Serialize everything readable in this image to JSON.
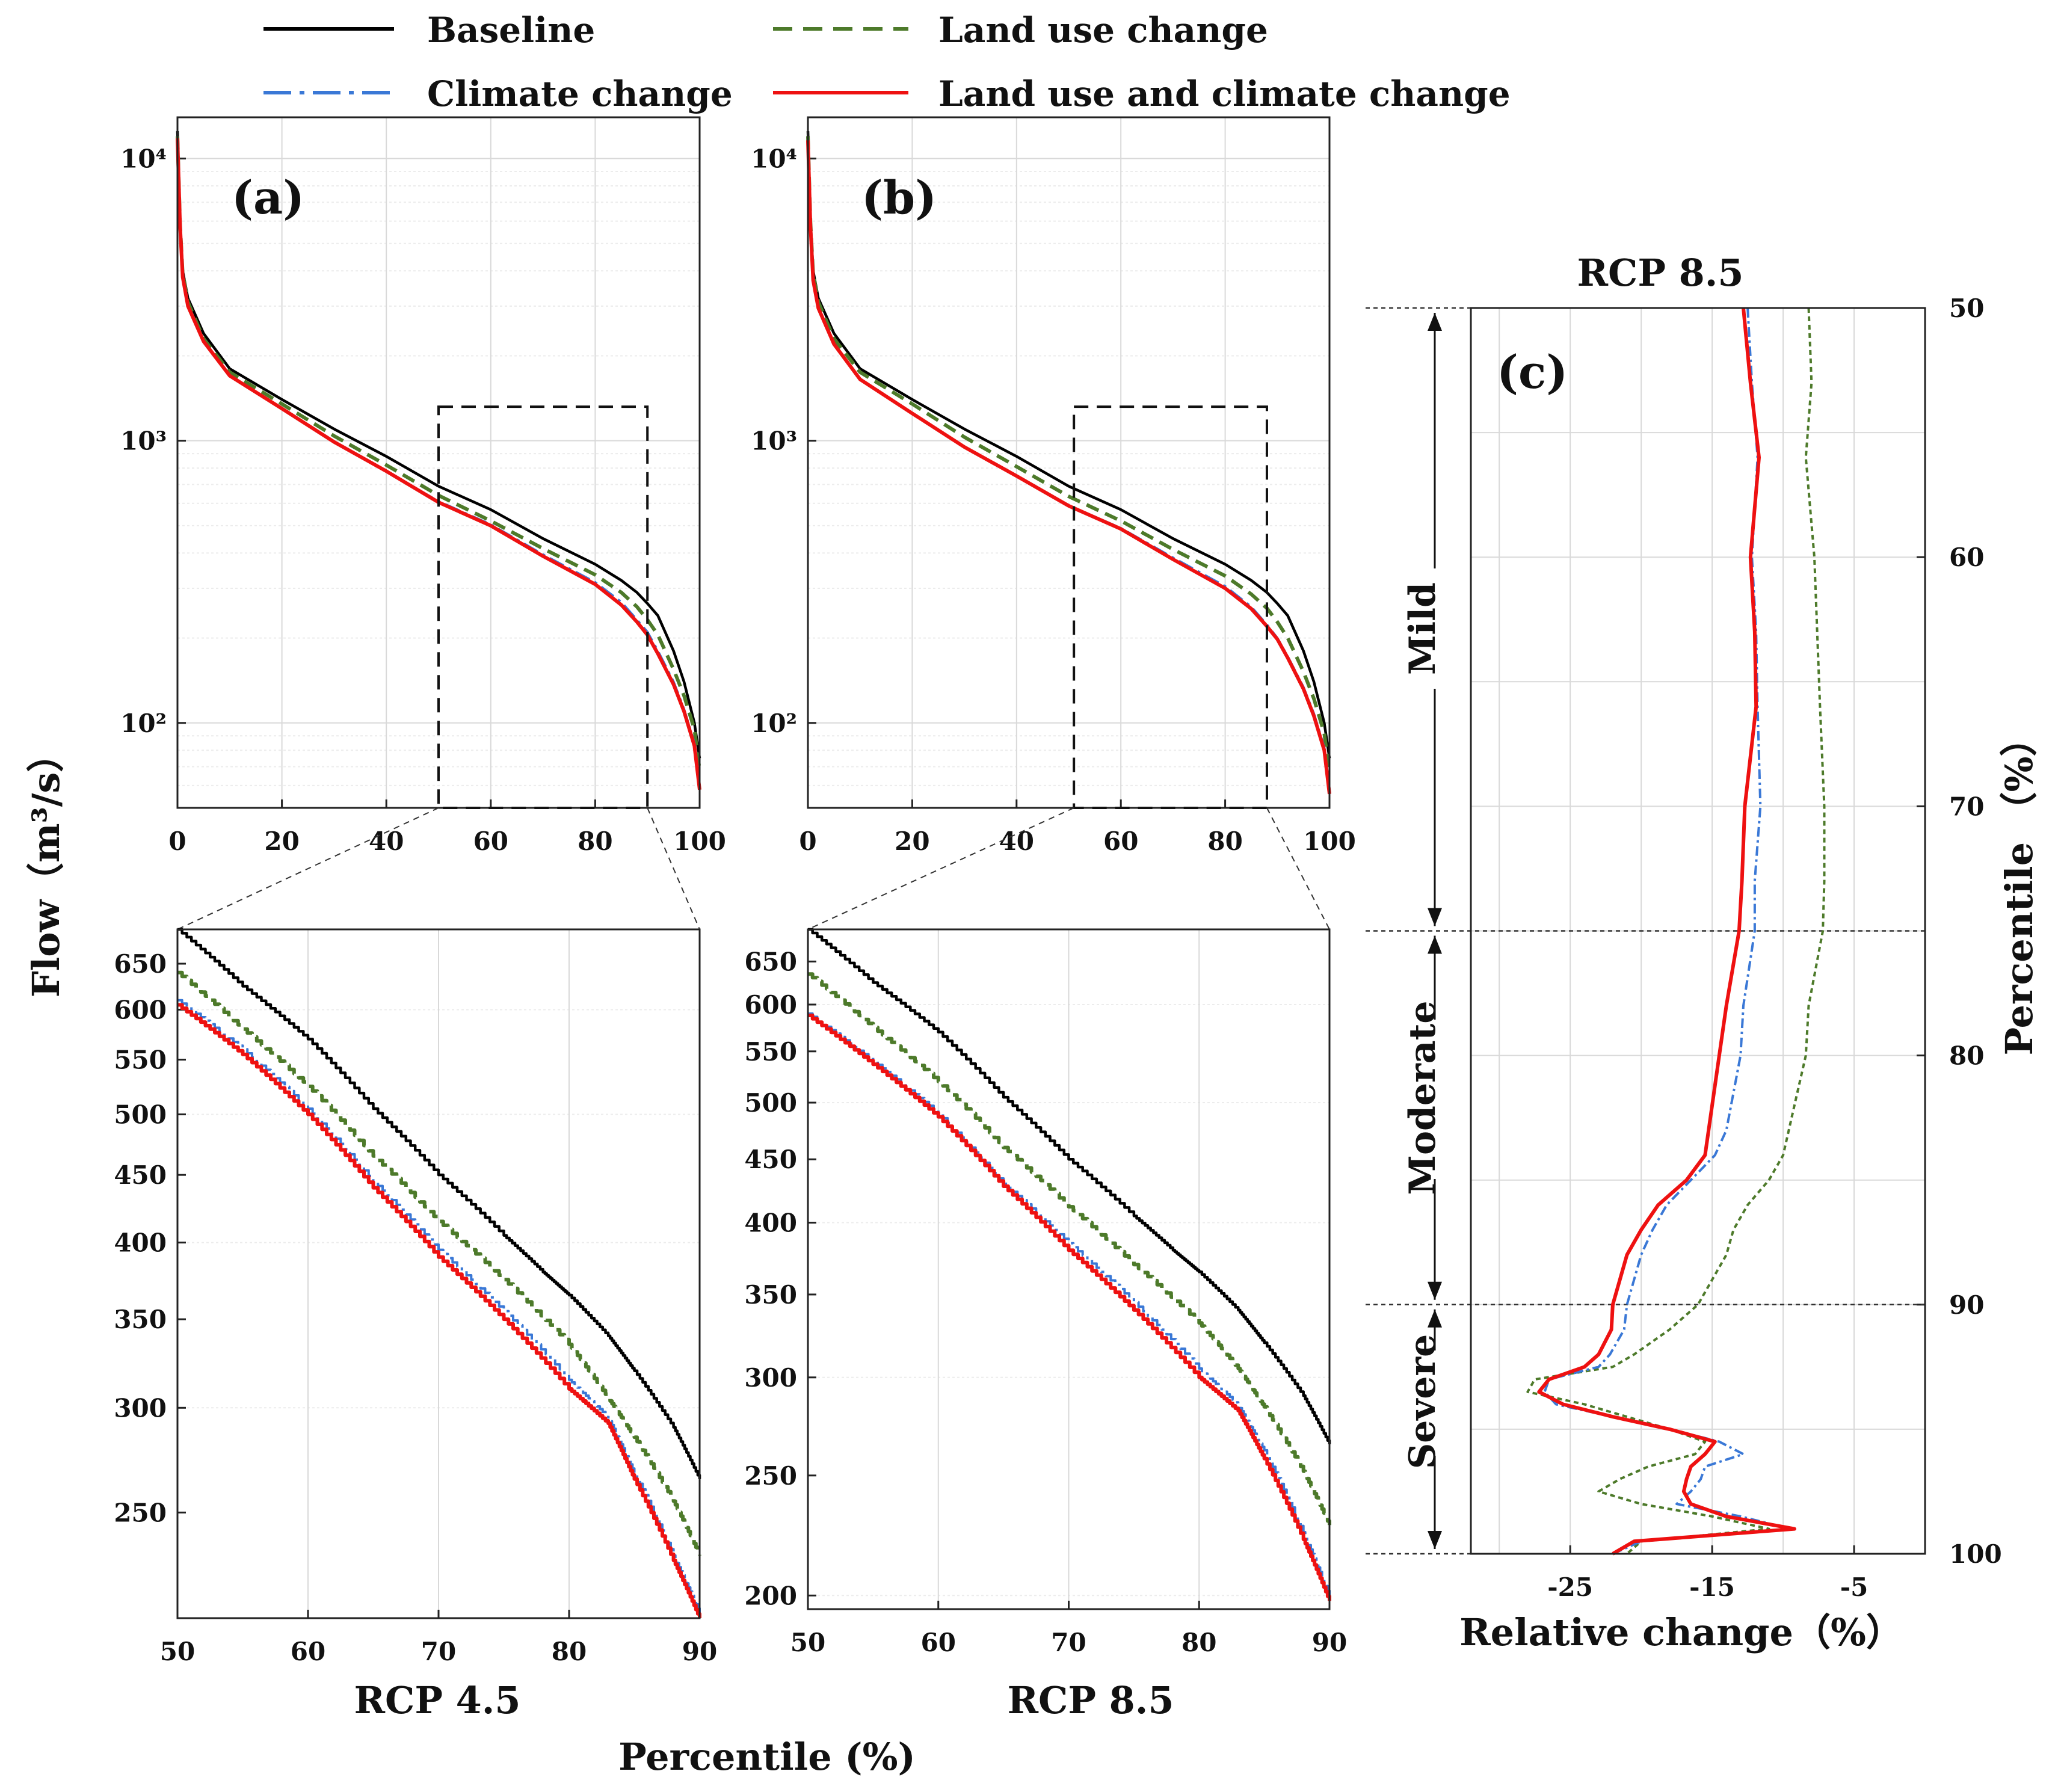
{
  "legend": {
    "items": [
      {
        "name": "Baseline",
        "color": "#000000",
        "dash": "solid"
      },
      {
        "name": "Land use change",
        "color": "#4d7a2a",
        "dash": "dashed"
      },
      {
        "name": "Climate change",
        "color": "#3a78d6",
        "dash": "dashdot"
      },
      {
        "name": "Land use and climate change",
        "color": "#ee1111",
        "dash": "solid"
      }
    ]
  },
  "labels": {
    "panel_a": "(a)",
    "panel_b": "(b)",
    "panel_c": "(c)",
    "flow_axis": "Flow（m³/s）",
    "rcp45": "RCP 4.5",
    "rcp85": "RCP 8.5",
    "percentile_axis": "Percentile (%)",
    "c_title": "RCP 8.5",
    "c_xlabel": "Relative change（%）",
    "c_ylabel": "Percentile （%）",
    "mild": "Mild",
    "moderate": "Moderate",
    "severe": "Severe"
  },
  "chart_data": [
    {
      "id": "a",
      "type": "line",
      "yscale": "log",
      "xlim": [
        0,
        100
      ],
      "ylim": [
        50,
        14000
      ],
      "xticks": [
        0,
        20,
        40,
        60,
        80,
        100
      ],
      "yticks": [
        {
          "v": 100,
          "label": "10²"
        },
        {
          "v": 1000,
          "label": "10³"
        },
        {
          "v": 10000,
          "label": "10⁴"
        }
      ],
      "zoom_box": {
        "x": [
          50,
          90
        ],
        "y": [
          50,
          1320
        ]
      },
      "series": [
        {
          "name": "Baseline",
          "x": [
            0,
            0.5,
            1,
            2,
            5,
            10,
            20,
            30,
            40,
            50,
            60,
            70,
            80,
            85,
            88,
            90,
            92,
            95,
            97,
            99,
            100
          ],
          "y": [
            12500,
            6000,
            4000,
            3200,
            2400,
            1800,
            1400,
            1100,
            880,
            690,
            570,
            450,
            365,
            320,
            290,
            265,
            240,
            180,
            140,
            100,
            75
          ]
        },
        {
          "name": "Land use change",
          "x": [
            0,
            0.5,
            1,
            2,
            5,
            10,
            20,
            30,
            40,
            50,
            60,
            70,
            80,
            85,
            88,
            90,
            92,
            95,
            97,
            99,
            100
          ],
          "y": [
            12000,
            5900,
            3900,
            3100,
            2300,
            1750,
            1350,
            1040,
            820,
            640,
            520,
            415,
            335,
            290,
            258,
            232,
            205,
            155,
            125,
            95,
            68
          ]
        },
        {
          "name": "Climate change",
          "x": [
            0,
            0.5,
            1,
            2,
            5,
            10,
            20,
            30,
            40,
            50,
            60,
            70,
            80,
            85,
            88,
            90,
            92,
            95,
            97,
            99,
            100
          ],
          "y": [
            11800,
            5800,
            3800,
            3000,
            2250,
            1700,
            1300,
            990,
            780,
            610,
            505,
            395,
            315,
            268,
            232,
            210,
            180,
            140,
            112,
            85,
            60
          ]
        },
        {
          "name": "Land use and climate change",
          "x": [
            0,
            0.5,
            1,
            2,
            5,
            10,
            20,
            30,
            40,
            50,
            60,
            70,
            80,
            85,
            88,
            90,
            92,
            95,
            97,
            99,
            100
          ],
          "y": [
            11800,
            5800,
            3800,
            3000,
            2250,
            1700,
            1300,
            990,
            780,
            605,
            500,
            390,
            310,
            262,
            228,
            205,
            176,
            137,
            110,
            83,
            58
          ]
        }
      ]
    },
    {
      "id": "b",
      "type": "line",
      "yscale": "log",
      "xlim": [
        0,
        100
      ],
      "ylim": [
        50,
        14000
      ],
      "xticks": [
        0,
        20,
        40,
        60,
        80,
        100
      ],
      "yticks": [
        {
          "v": 100,
          "label": "10²"
        },
        {
          "v": 1000,
          "label": "10³"
        },
        {
          "v": 10000,
          "label": "10⁴"
        }
      ],
      "zoom_box": {
        "x": [
          51,
          88
        ],
        "y": [
          50,
          1320
        ]
      },
      "series": [
        {
          "name": "Baseline",
          "x": [
            0,
            0.5,
            1,
            2,
            5,
            10,
            20,
            30,
            40,
            50,
            60,
            70,
            80,
            85,
            88,
            90,
            92,
            95,
            97,
            99,
            100
          ],
          "y": [
            12500,
            6000,
            4000,
            3200,
            2400,
            1800,
            1400,
            1100,
            880,
            690,
            570,
            450,
            365,
            320,
            290,
            265,
            240,
            180,
            140,
            100,
            75
          ]
        },
        {
          "name": "Land use change",
          "x": [
            0,
            0.5,
            1,
            2,
            5,
            10,
            20,
            30,
            40,
            50,
            60,
            70,
            80,
            85,
            88,
            90,
            92,
            95,
            97,
            99,
            100
          ],
          "y": [
            12000,
            5900,
            3900,
            3100,
            2300,
            1750,
            1350,
            1030,
            810,
            635,
            520,
            412,
            332,
            286,
            255,
            228,
            200,
            152,
            122,
            92,
            66
          ]
        },
        {
          "name": "Climate change",
          "x": [
            0,
            0.5,
            1,
            2,
            5,
            10,
            20,
            30,
            40,
            50,
            60,
            70,
            80,
            85,
            88,
            90,
            92,
            95,
            97,
            99,
            100
          ],
          "y": [
            11600,
            5700,
            3700,
            2950,
            2200,
            1650,
            1250,
            950,
            750,
            590,
            490,
            385,
            305,
            258,
            223,
            200,
            172,
            134,
            108,
            82,
            58
          ]
        },
        {
          "name": "Land use and climate change",
          "x": [
            0,
            0.5,
            1,
            2,
            5,
            10,
            20,
            30,
            40,
            50,
            60,
            70,
            80,
            85,
            88,
            90,
            92,
            95,
            97,
            99,
            100
          ],
          "y": [
            11600,
            5700,
            3700,
            2950,
            2200,
            1650,
            1250,
            950,
            750,
            588,
            487,
            380,
            300,
            254,
            220,
            198,
            170,
            132,
            106,
            80,
            56
          ]
        }
      ]
    },
    {
      "id": "a-zoom",
      "type": "line",
      "yscale": "log",
      "xlim": [
        50,
        90
      ],
      "ylim": [
        208,
        690
      ],
      "xticks": [
        50,
        60,
        70,
        80,
        90
      ],
      "yticks": [
        {
          "v": 250,
          "label": "250"
        },
        {
          "v": 300,
          "label": "300"
        },
        {
          "v": 350,
          "label": "350"
        },
        {
          "v": 400,
          "label": "400"
        },
        {
          "v": 450,
          "label": "450"
        },
        {
          "v": 500,
          "label": "500"
        },
        {
          "v": 550,
          "label": "550"
        },
        {
          "v": 600,
          "label": "600"
        },
        {
          "v": 650,
          "label": "650"
        }
      ],
      "xlabel": "RCP 4.5",
      "series": [
        {
          "name": "Baseline",
          "x": [
            50,
            55,
            60,
            65,
            70,
            75,
            78,
            80,
            83,
            85,
            88,
            90
          ],
          "y": [
            690,
            625,
            570,
            505,
            450,
            405,
            380,
            365,
            340,
            320,
            290,
            265
          ]
        },
        {
          "name": "Land use change",
          "x": [
            50,
            55,
            60,
            65,
            70,
            75,
            80,
            83,
            85,
            88,
            90
          ],
          "y": [
            640,
            580,
            525,
            465,
            415,
            375,
            335,
            305,
            285,
            255,
            232
          ]
        },
        {
          "name": "Climate change",
          "x": [
            50,
            55,
            60,
            65,
            70,
            75,
            80,
            83,
            85,
            88,
            90
          ],
          "y": [
            610,
            560,
            505,
            445,
            395,
            355,
            315,
            295,
            268,
            232,
            210
          ]
        },
        {
          "name": "Land use and climate change",
          "x": [
            50,
            55,
            60,
            65,
            70,
            75,
            80,
            83,
            85,
            88,
            90
          ],
          "y": [
            605,
            555,
            500,
            440,
            390,
            350,
            310,
            292,
            265,
            230,
            208
          ]
        }
      ]
    },
    {
      "id": "b-zoom",
      "type": "line",
      "yscale": "log",
      "xlim": [
        50,
        90
      ],
      "ylim": [
        195,
        690
      ],
      "xticks": [
        50,
        60,
        70,
        80,
        90
      ],
      "yticks": [
        {
          "v": 200,
          "label": "200"
        },
        {
          "v": 250,
          "label": "250"
        },
        {
          "v": 300,
          "label": "300"
        },
        {
          "v": 350,
          "label": "350"
        },
        {
          "v": 400,
          "label": "400"
        },
        {
          "v": 450,
          "label": "450"
        },
        {
          "v": 500,
          "label": "500"
        },
        {
          "v": 550,
          "label": "550"
        },
        {
          "v": 600,
          "label": "600"
        },
        {
          "v": 650,
          "label": "650"
        }
      ],
      "xlabel": "RCP 8.5",
      "series": [
        {
          "name": "Baseline",
          "x": [
            50,
            55,
            60,
            65,
            70,
            75,
            78,
            80,
            83,
            85,
            88,
            90
          ],
          "y": [
            690,
            625,
            570,
            505,
            450,
            405,
            380,
            365,
            340,
            320,
            290,
            265
          ]
        },
        {
          "name": "Land use change",
          "x": [
            50,
            55,
            60,
            65,
            70,
            75,
            80,
            83,
            85,
            88,
            90
          ],
          "y": [
            635,
            575,
            520,
            460,
            412,
            370,
            332,
            305,
            284,
            252,
            228
          ]
        },
        {
          "name": "Climate change",
          "x": [
            50,
            55,
            60,
            65,
            70,
            75,
            80,
            83,
            85,
            88,
            90
          ],
          "y": [
            590,
            540,
            490,
            430,
            385,
            345,
            305,
            285,
            262,
            225,
            200
          ]
        },
        {
          "name": "Land use and climate change",
          "x": [
            50,
            55,
            60,
            65,
            70,
            75,
            80,
            83,
            85,
            88,
            90
          ],
          "y": [
            588,
            537,
            487,
            428,
            380,
            340,
            300,
            282,
            258,
            222,
            198
          ]
        }
      ]
    },
    {
      "id": "c",
      "type": "line",
      "orientation": "vertical",
      "title": "RCP 8.5",
      "xlim": [
        -32,
        0
      ],
      "ylim": [
        50,
        100
      ],
      "xticks": [
        -25,
        -15,
        -5
      ],
      "yticks": [
        50,
        60,
        70,
        80,
        90,
        100
      ],
      "xlabel": "Relative change（%）",
      "ylabel": "Percentile （%）",
      "thresholds": [
        75,
        90
      ],
      "series": [
        {
          "name": "Climate change",
          "p": [
            50,
            53,
            56,
            60,
            63,
            66,
            70,
            73,
            75,
            78,
            80,
            83,
            84,
            85,
            86,
            87,
            88,
            89,
            90,
            91,
            92,
            92.5,
            93,
            93.5,
            94,
            94.5,
            95,
            95.5,
            96,
            96.5,
            97,
            97.5,
            98,
            98.5,
            99,
            99.5,
            100
          ],
          "v": [
            -12.5,
            -12.2,
            -11.8,
            -12.2,
            -11.9,
            -11.8,
            -11.6,
            -12,
            -12,
            -12.8,
            -13,
            -14,
            -14.8,
            -16.5,
            -18.2,
            -19.2,
            -20,
            -20.5,
            -21,
            -21.2,
            -22.2,
            -23,
            -26.5,
            -26.8,
            -26,
            -22,
            -18,
            -14.5,
            -12.8,
            -15.5,
            -15.8,
            -16.5,
            -17.5,
            -13,
            -9.5,
            -20,
            -22
          ]
        },
        {
          "name": "Land use change",
          "p": [
            50,
            53,
            56,
            60,
            63,
            66,
            70,
            73,
            75,
            78,
            80,
            82,
            84,
            85,
            86,
            87,
            88,
            89,
            90,
            91,
            92,
            92.5,
            93,
            93.5,
            94,
            94.5,
            95,
            95.5,
            96,
            96.5,
            97,
            97.5,
            98,
            98.5,
            99,
            99.5,
            100
          ],
          "v": [
            -8.2,
            -8,
            -8.4,
            -7.8,
            -7.6,
            -7.4,
            -7.1,
            -7.1,
            -7.2,
            -8.2,
            -8.4,
            -9.2,
            -10,
            -11,
            -12.5,
            -13.5,
            -14,
            -15,
            -16,
            -18,
            -20.5,
            -22,
            -27.5,
            -28,
            -24,
            -21,
            -18,
            -15.5,
            -16.2,
            -19.5,
            -21.5,
            -23,
            -20,
            -15,
            -11,
            -20,
            -21
          ]
        },
        {
          "name": "Land use and climate change",
          "p": [
            50,
            53,
            56,
            60,
            63,
            66,
            70,
            73,
            75,
            78,
            80,
            82,
            84,
            85,
            86,
            87,
            88,
            89,
            90,
            91,
            92,
            92.5,
            93,
            93.5,
            94,
            94.5,
            95,
            95.5,
            96,
            96.5,
            97,
            97.5,
            98,
            98.5,
            99,
            99.5,
            100
          ],
          "v": [
            -12.8,
            -12.3,
            -11.7,
            -12.3,
            -12,
            -11.9,
            -12.7,
            -12.9,
            -13.1,
            -14,
            -14.5,
            -15,
            -15.5,
            -16.8,
            -18.8,
            -20,
            -21,
            -21.5,
            -22,
            -22.1,
            -23,
            -24,
            -26.5,
            -27.2,
            -25.5,
            -22,
            -18,
            -14.8,
            -15.5,
            -16.5,
            -16.8,
            -17,
            -16.5,
            -14,
            -9.2,
            -20.5,
            -22
          ]
        }
      ]
    }
  ]
}
